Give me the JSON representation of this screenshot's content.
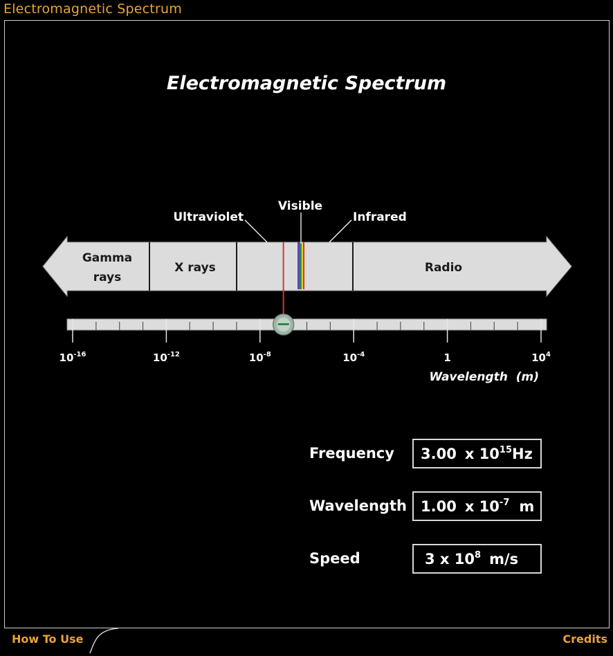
{
  "app": {
    "title": "Electromagnetic Spectrum"
  },
  "simulation": {
    "title": "Electromagnetic Spectrum"
  },
  "bands": [
    {
      "name": "gamma",
      "line1": "Gamma",
      "line2": "rays"
    },
    {
      "name": "xray",
      "line1": "X rays"
    },
    {
      "name": "radio",
      "line1": "Radio"
    }
  ],
  "callouts": {
    "ultraviolet": "Ultraviolet",
    "visible": "Visible",
    "infrared": "Infrared"
  },
  "slider": {
    "tick_labels": [
      {
        "base": "10",
        "exp": "-16"
      },
      {
        "base": "10",
        "exp": "-12"
      },
      {
        "base": "10",
        "exp": "-8"
      },
      {
        "base": "10",
        "exp": "-4"
      },
      {
        "base": "1",
        "exp": ""
      },
      {
        "base": "10",
        "exp": "4"
      }
    ],
    "axis_label": "Wavelength  (m)",
    "selected_wavelength_exp": -7
  },
  "readouts": {
    "frequency": {
      "label": "Frequency",
      "mantissa": "3.00",
      "times": "x 10",
      "exp": "15",
      "unit": "Hz"
    },
    "wavelength": {
      "label": "Wavelength",
      "mantissa": "1.00",
      "times": "x 10",
      "exp": "-7",
      "unit": "m"
    },
    "speed": {
      "label": "Speed",
      "mantissa": "3 x 10",
      "exp": "8",
      "unit": "m/s"
    }
  },
  "footer": {
    "how_to_use": "How To Use",
    "credits": "Credits"
  },
  "colors": {
    "accent": "#e8a43a",
    "band_fill": "#dcdcdc",
    "marker": "#d23a2a"
  }
}
